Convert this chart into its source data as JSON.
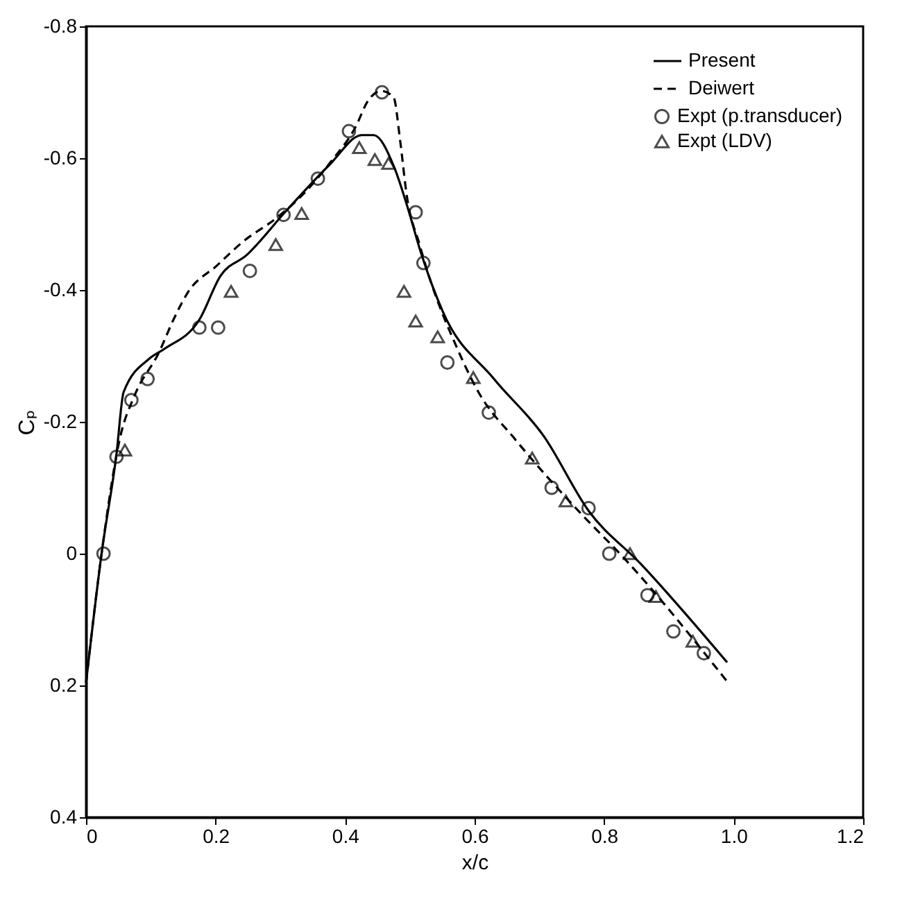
{
  "chart_data": {
    "type": "line",
    "xlabel": "x/c",
    "ylabel": "Cₚ",
    "xlim": [
      0,
      1.2
    ],
    "ylim": [
      0.4,
      -0.8
    ],
    "xticks": [
      0,
      0.2,
      0.4,
      0.6,
      0.8,
      {
        "value": 1.0,
        "label": "1.0"
      },
      1.2
    ],
    "yticks": [
      -0.8,
      -0.6,
      -0.4,
      -0.2,
      0,
      0.2,
      0.4
    ],
    "legend": "top right",
    "series": [
      {
        "name": "Present",
        "line_style": "solid",
        "color": "#000000",
        "x": [
          0,
          0.024,
          0.047,
          0.058,
          0.098,
          0.12,
          0.175,
          0.208,
          0.248,
          0.309,
          0.376,
          0.426,
          0.444,
          0.476,
          0.497,
          0.517,
          0.551,
          0.63,
          0.707,
          0.776,
          0.857,
          0.99
        ],
        "values": [
          0.196,
          0,
          -0.151,
          -0.245,
          -0.296,
          -0.31,
          -0.355,
          -0.422,
          -0.453,
          -0.52,
          -0.59,
          -0.635,
          -0.635,
          -0.586,
          -0.524,
          -0.457,
          -0.367,
          -0.265,
          -0.178,
          -0.065,
          0.016,
          0.165
        ]
      },
      {
        "name": "Deiwert",
        "line_style": "dashed",
        "color": "#000000",
        "x": [
          0,
          0.024,
          0.053,
          0.075,
          0.113,
          0.135,
          0.157,
          0.202,
          0.242,
          0.295,
          0.335,
          0.376,
          0.416,
          0.436,
          0.456,
          0.475,
          0.485,
          0.495,
          0.515,
          0.527,
          0.572,
          0.606,
          0.663,
          0.764,
          0.83,
          0.99
        ],
        "values": [
          0.196,
          0,
          -0.178,
          -0.24,
          -0.306,
          -0.355,
          -0.396,
          -0.437,
          -0.473,
          -0.51,
          -0.545,
          -0.592,
          -0.647,
          -0.688,
          -0.702,
          -0.692,
          -0.627,
          -0.545,
          -0.469,
          -0.429,
          -0.314,
          -0.245,
          -0.173,
          -0.061,
          0.006,
          0.194
        ]
      },
      {
        "name": "Expt (p.transducer)",
        "type": "scatter",
        "marker": "circle",
        "color": "#000000",
        "x": [
          0.027,
          0.047,
          0.07,
          0.095,
          0.175,
          0.204,
          0.253,
          0.305,
          0.358,
          0.406,
          0.457,
          0.509,
          0.521,
          0.558,
          0.622,
          0.719,
          0.776,
          0.808,
          0.867,
          0.907,
          0.954
        ],
        "values": [
          0,
          -0.147,
          -0.233,
          -0.265,
          -0.343,
          -0.343,
          -0.429,
          -0.514,
          -0.569,
          -0.641,
          -0.7,
          -0.518,
          -0.441,
          -0.29,
          -0.214,
          -0.1,
          -0.069,
          0,
          0.063,
          0.118,
          0.151
        ]
      },
      {
        "name": "Expt (LDV)",
        "type": "scatter",
        "marker": "triangle",
        "color": "#000000",
        "x": [
          0.06,
          0.224,
          0.293,
          0.333,
          0.422,
          0.446,
          0.467,
          0.491,
          0.509,
          0.543,
          0.598,
          0.689,
          0.741,
          0.84,
          0.88,
          0.937
        ],
        "values": [
          -0.157,
          -0.398,
          -0.469,
          -0.516,
          -0.616,
          -0.598,
          -0.592,
          -0.398,
          -0.353,
          -0.329,
          -0.267,
          -0.145,
          -0.08,
          0,
          0.065,
          0.133
        ]
      }
    ]
  }
}
